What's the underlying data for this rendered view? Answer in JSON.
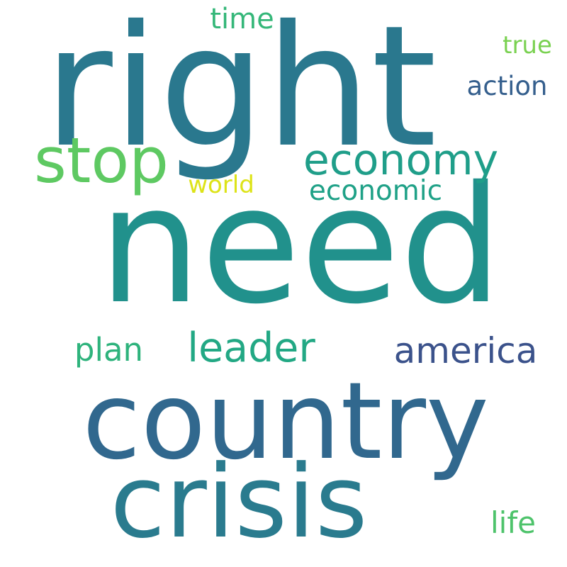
{
  "words": [
    {
      "id": "need",
      "text": "need",
      "color": "#21918c"
    },
    {
      "id": "right",
      "text": "right",
      "color": "#2a788e"
    },
    {
      "id": "country",
      "text": "country",
      "color": "#31688e"
    },
    {
      "id": "crisis",
      "text": "crisis",
      "color": "#2a7b8e"
    },
    {
      "id": "stop",
      "text": "stop",
      "color": "#5ec962"
    },
    {
      "id": "economy",
      "text": "economy",
      "color": "#1f9e89"
    },
    {
      "id": "america",
      "text": "america",
      "color": "#3b528b"
    },
    {
      "id": "leader",
      "text": "leader",
      "color": "#22a884"
    },
    {
      "id": "economic",
      "text": "economic",
      "color": "#1fa187"
    },
    {
      "id": "plan",
      "text": "plan",
      "color": "#2eb37c"
    },
    {
      "id": "action",
      "text": "action",
      "color": "#355f8d"
    },
    {
      "id": "time",
      "text": "time",
      "color": "#35b779"
    },
    {
      "id": "world",
      "text": "world",
      "color": "#dde318"
    },
    {
      "id": "true",
      "text": "true",
      "color": "#7ad151"
    },
    {
      "id": "life",
      "text": "life",
      "color": "#4ec36b"
    }
  ]
}
